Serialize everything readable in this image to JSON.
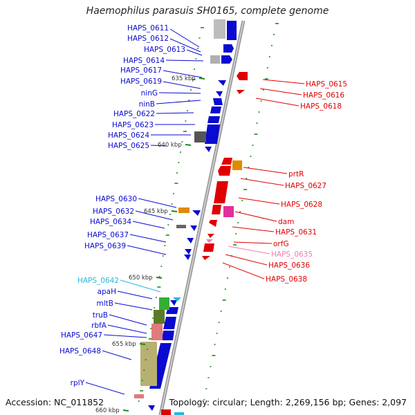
{
  "title": "Haemophilus parasuis SH0165, complete genome",
  "footer": {
    "accession": "Accession: NC_011852",
    "topology": "Topology: circular; Length: 2,269,156 bp; Genes: 2,097"
  },
  "colors": {
    "forward_gene": "#0a0ad0",
    "reverse_gene": "#e00000",
    "rna_gene": "#22b8e0",
    "pseudo_gene": "#f07ab0",
    "backbone": "#999999",
    "tick": "#1a8a1a"
  },
  "scale_labels": [
    "635 kbp",
    "640 kbp",
    "645 kbp",
    "650 kbp",
    "655 kbp",
    "660 kbp"
  ],
  "left_labels": [
    {
      "text": "HAPS_0611",
      "color": "#0a0ad0"
    },
    {
      "text": "HAPS_0612",
      "color": "#0a0ad0"
    },
    {
      "text": "HAPS_0613",
      "color": "#0a0ad0"
    },
    {
      "text": "HAPS_0614",
      "color": "#0a0ad0"
    },
    {
      "text": "HAPS_0617",
      "color": "#0a0ad0"
    },
    {
      "text": "HAPS_0619",
      "color": "#0a0ad0"
    },
    {
      "text": "ninG",
      "color": "#0a0ad0"
    },
    {
      "text": "ninB",
      "color": "#0a0ad0"
    },
    {
      "text": "HAPS_0622",
      "color": "#0a0ad0"
    },
    {
      "text": "HAPS_0623",
      "color": "#0a0ad0"
    },
    {
      "text": "HAPS_0624",
      "color": "#0a0ad0"
    },
    {
      "text": "HAPS_0625",
      "color": "#0a0ad0"
    },
    {
      "text": "HAPS_0630",
      "color": "#0a0ad0"
    },
    {
      "text": "HAPS_0632",
      "color": "#0a0ad0"
    },
    {
      "text": "HAPS_0634",
      "color": "#0a0ad0"
    },
    {
      "text": "HAPS_0637",
      "color": "#0a0ad0"
    },
    {
      "text": "HAPS_0639",
      "color": "#0a0ad0"
    },
    {
      "text": "HAPS_0642",
      "color": "#22b8e0"
    },
    {
      "text": "apaH",
      "color": "#0a0ad0"
    },
    {
      "text": "mltB",
      "color": "#0a0ad0"
    },
    {
      "text": "truB",
      "color": "#0a0ad0"
    },
    {
      "text": "rbfA",
      "color": "#0a0ad0"
    },
    {
      "text": "HAPS_0647",
      "color": "#0a0ad0"
    },
    {
      "text": "HAPS_0648",
      "color": "#0a0ad0"
    },
    {
      "text": "rplY",
      "color": "#0a0ad0"
    }
  ],
  "right_labels": [
    {
      "text": "HAPS_0615",
      "color": "#e00000"
    },
    {
      "text": "HAPS_0616",
      "color": "#e00000"
    },
    {
      "text": "HAPS_0618",
      "color": "#e00000"
    },
    {
      "text": "prtR",
      "color": "#e00000"
    },
    {
      "text": "HAPS_0627",
      "color": "#e00000"
    },
    {
      "text": "HAPS_0628",
      "color": "#e00000"
    },
    {
      "text": "dam",
      "color": "#e00000"
    },
    {
      "text": "HAPS_0631",
      "color": "#e00000"
    },
    {
      "text": "orfG",
      "color": "#e00000"
    },
    {
      "text": "HAPS_0635",
      "color": "#f07ab0"
    },
    {
      "text": "HAPS_0636",
      "color": "#e00000"
    },
    {
      "text": "HAPS_0638",
      "color": "#e00000"
    }
  ]
}
